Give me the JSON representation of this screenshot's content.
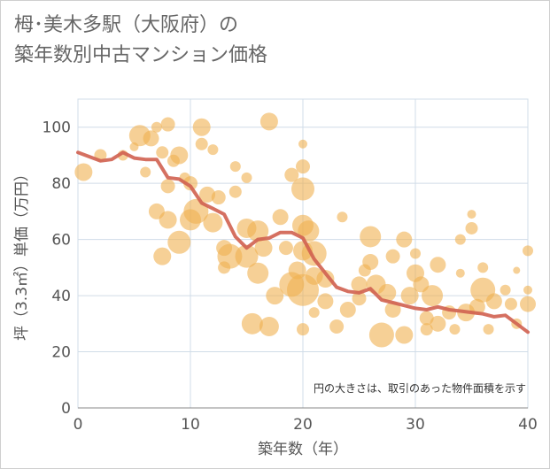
{
  "title": {
    "line1": "栂･美木多駅（大阪府）の",
    "line2": "築年数別中古マンション価格"
  },
  "colors": {
    "bubble": "#f0b050",
    "line": "#d06050",
    "grid": "#d0dce8",
    "axis": "#555555"
  },
  "chart_data": {
    "type": "scatter",
    "xlabel": "築年数（年）",
    "ylabel": "坪（3.3㎡）単価（万円）",
    "xlim": [
      0,
      40
    ],
    "ylim": [
      0,
      110
    ],
    "xticks": [
      "0",
      "10",
      "20",
      "30",
      "40"
    ],
    "yticks": [
      "0",
      "20",
      "40",
      "60",
      "80",
      "100"
    ],
    "annotation": "円の大きさは、取引のあった物件面積を示す",
    "grid": true,
    "series": [
      {
        "type": "line",
        "x": [
          0,
          1,
          2,
          3,
          4,
          5,
          6,
          7,
          8,
          9,
          10,
          11,
          12,
          13,
          14,
          15,
          16,
          17,
          18,
          19,
          20,
          21,
          22,
          23,
          24,
          25,
          26,
          27,
          28,
          29,
          30,
          31,
          32,
          33,
          34,
          35,
          36,
          37,
          38,
          39,
          40
        ],
        "values": [
          91,
          89.5,
          88,
          88.5,
          91,
          89,
          88.5,
          88.5,
          82,
          81.5,
          79,
          73,
          71,
          69,
          61,
          57,
          60,
          60.5,
          62.5,
          62.5,
          60.5,
          53,
          48,
          43,
          41.5,
          41,
          42.5,
          38.5,
          37.5,
          36.5,
          35.5,
          35,
          36,
          35,
          34.5,
          34,
          33.5,
          32.5,
          33,
          30,
          27
        ]
      },
      {
        "type": "bubble",
        "points": [
          [
            0.5,
            84,
            10
          ],
          [
            2,
            90,
            7
          ],
          [
            4,
            90,
            6
          ],
          [
            5,
            93,
            5
          ],
          [
            5.5,
            97,
            12
          ],
          [
            6,
            84,
            6
          ],
          [
            6.5,
            96,
            9
          ],
          [
            7,
            100,
            6
          ],
          [
            7.5,
            91,
            7
          ],
          [
            8,
            101,
            8
          ],
          [
            8,
            79,
            8
          ],
          [
            8.5,
            88,
            7
          ],
          [
            9,
            90,
            10
          ],
          [
            9.5,
            82,
            6
          ],
          [
            7,
            70,
            9
          ],
          [
            7.5,
            54,
            10
          ],
          [
            8,
            67,
            10
          ],
          [
            9,
            59,
            13
          ],
          [
            10,
            67,
            12
          ],
          [
            10,
            80,
            8
          ],
          [
            10.5,
            70,
            14
          ],
          [
            11,
            100,
            10
          ],
          [
            11,
            94,
            7
          ],
          [
            11.5,
            76,
            9
          ],
          [
            12,
            92,
            6
          ],
          [
            12,
            66,
            11
          ],
          [
            12.5,
            75,
            8
          ],
          [
            13,
            57,
            9
          ],
          [
            13,
            50,
            7
          ],
          [
            13.5,
            54,
            14
          ],
          [
            14,
            77,
            7
          ],
          [
            14,
            86,
            6
          ],
          [
            15,
            82,
            6
          ],
          [
            15,
            64,
            11
          ],
          [
            15,
            54,
            13
          ],
          [
            15.5,
            30,
            12
          ],
          [
            16,
            63,
            12
          ],
          [
            16,
            48,
            12
          ],
          [
            16.5,
            57,
            10
          ],
          [
            17,
            102,
            10
          ],
          [
            17,
            29,
            11
          ],
          [
            17.5,
            40,
            10
          ],
          [
            18,
            68,
            9
          ],
          [
            18.5,
            57,
            8
          ],
          [
            19,
            83,
            8
          ],
          [
            19,
            44,
            14
          ],
          [
            19.5,
            49,
            10
          ],
          [
            20,
            94,
            5
          ],
          [
            20,
            86,
            8
          ],
          [
            20,
            78,
            13
          ],
          [
            20,
            65,
            12
          ],
          [
            20,
            56,
            11
          ],
          [
            20,
            42,
            18
          ],
          [
            20,
            28,
            7
          ],
          [
            20.5,
            63,
            12
          ],
          [
            21,
            55,
            14
          ],
          [
            21,
            47,
            10
          ],
          [
            21,
            34,
            6
          ],
          [
            22,
            38,
            9
          ],
          [
            22,
            46,
            10
          ],
          [
            23,
            29,
            8
          ],
          [
            23.5,
            68,
            6
          ],
          [
            24,
            35,
            9
          ],
          [
            25,
            44,
            9
          ],
          [
            25,
            39,
            8
          ],
          [
            25.5,
            49,
            7
          ],
          [
            26,
            61,
            12
          ],
          [
            26,
            52,
            9
          ],
          [
            26.5,
            44,
            11
          ],
          [
            27,
            26,
            14
          ],
          [
            27.5,
            41,
            10
          ],
          [
            28,
            54,
            8
          ],
          [
            28,
            35,
            9
          ],
          [
            29,
            26,
            10
          ],
          [
            29,
            60,
            9
          ],
          [
            29.5,
            40,
            10
          ],
          [
            30,
            48,
            10
          ],
          [
            30,
            55,
            6
          ],
          [
            30.5,
            44,
            9
          ],
          [
            31,
            28,
            7
          ],
          [
            31,
            32,
            8
          ],
          [
            31.5,
            40,
            12
          ],
          [
            32,
            51,
            9
          ],
          [
            32,
            30,
            9
          ],
          [
            33,
            34,
            8
          ],
          [
            33.5,
            28,
            6
          ],
          [
            34,
            60,
            6
          ],
          [
            34,
            48,
            5
          ],
          [
            34.5,
            34,
            10
          ],
          [
            35,
            64,
            7
          ],
          [
            35,
            69,
            5
          ],
          [
            35.5,
            36,
            9
          ],
          [
            36,
            42,
            14
          ],
          [
            36,
            50,
            6
          ],
          [
            36.5,
            28,
            6
          ],
          [
            37,
            38,
            9
          ],
          [
            38,
            42,
            6
          ],
          [
            38.5,
            37,
            7
          ],
          [
            39,
            30,
            6
          ],
          [
            39,
            49,
            4
          ],
          [
            40,
            56,
            6
          ],
          [
            40,
            37,
            9
          ],
          [
            40,
            42,
            5
          ]
        ]
      }
    ]
  }
}
